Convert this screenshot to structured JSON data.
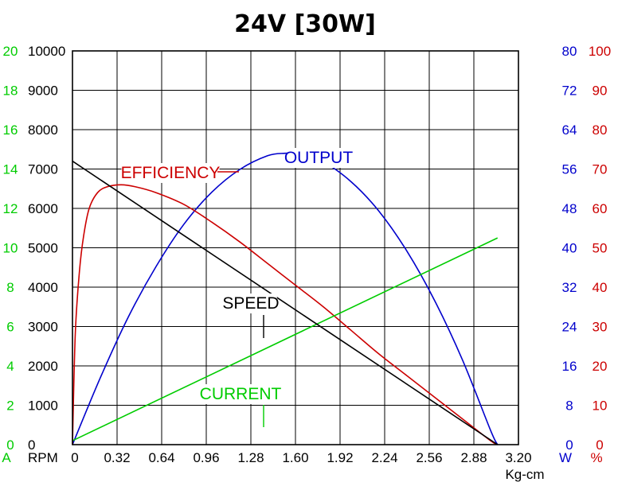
{
  "chart_data": {
    "type": "line",
    "title": "24V [30W]",
    "x": {
      "unit_label": "Kg-cm",
      "ticks": [
        0,
        0.32,
        0.64,
        0.96,
        1.28,
        1.6,
        1.92,
        2.24,
        2.56,
        2.88,
        3.2
      ],
      "tick_labels": [
        "0",
        "0.32",
        "0.64",
        "0.96",
        "1.28",
        "1.60",
        "1.92",
        "2.24",
        "2.56",
        "2.88",
        "3.20"
      ],
      "range": [
        0,
        3.2
      ]
    },
    "axes": {
      "current": {
        "unit_label": "A",
        "ticks": [
          0,
          2,
          4,
          6,
          8,
          10,
          12,
          14,
          16,
          18,
          20
        ],
        "tick_labels": [
          "0",
          "2",
          "4",
          "6",
          "8",
          "10",
          "12",
          "14",
          "16",
          "18",
          "20"
        ],
        "range": [
          0,
          20
        ],
        "color": "#00cc00"
      },
      "speed": {
        "unit_label": "RPM",
        "ticks": [
          0,
          1000,
          2000,
          3000,
          4000,
          5000,
          6000,
          7000,
          8000,
          9000,
          10000
        ],
        "tick_labels": [
          "0",
          "1000",
          "2000",
          "3000",
          "4000",
          "5000",
          "6000",
          "7000",
          "8000",
          "9000",
          "10000"
        ],
        "range": [
          0,
          10000
        ],
        "color": "#000000"
      },
      "output": {
        "unit_label": "W",
        "ticks": [
          0,
          8,
          16,
          24,
          32,
          40,
          48,
          56,
          64,
          72,
          80
        ],
        "tick_labels": [
          "0",
          "8",
          "16",
          "24",
          "32",
          "40",
          "48",
          "56",
          "64",
          "72",
          "80"
        ],
        "range": [
          0,
          80
        ],
        "color": "#0000cc"
      },
      "efficiency": {
        "unit_label": "%",
        "ticks": [
          0,
          10,
          20,
          30,
          40,
          50,
          60,
          70,
          80,
          90,
          100
        ],
        "tick_labels": [
          "0",
          "10",
          "20",
          "30",
          "40",
          "50",
          "60",
          "70",
          "80",
          "90",
          "100"
        ],
        "range": [
          0,
          100
        ],
        "color": "#cc0000"
      }
    },
    "grid": true,
    "series": {
      "speed": {
        "name": "SPEED",
        "axis": "speed",
        "color": "#000000",
        "x": [
          0,
          3.05
        ],
        "y": [
          7200,
          0
        ]
      },
      "current": {
        "name": "CURRENT",
        "axis": "current",
        "color": "#00cc00",
        "x": [
          0,
          3.05
        ],
        "y": [
          0.2,
          10.5
        ]
      },
      "output": {
        "name": "OUTPUT",
        "axis": "output",
        "color": "#0000cc",
        "x": [
          0,
          0.2,
          0.4,
          0.6,
          0.8,
          1.0,
          1.2,
          1.4,
          1.525,
          1.6,
          1.8,
          2.0,
          2.2,
          2.4,
          2.6,
          2.8,
          3.0,
          3.05
        ],
        "y": [
          0,
          13.6,
          25.9,
          36.2,
          44.8,
          51.3,
          55.9,
          58.7,
          59.2,
          59.1,
          57.4,
          53.4,
          47.4,
          39.3,
          29.2,
          17.1,
          2.9,
          0
        ]
      },
      "efficiency": {
        "name": "EFFICIENCY",
        "axis": "efficiency",
        "color": "#cc0000",
        "x": [
          0,
          0.02,
          0.05,
          0.08,
          0.12,
          0.18,
          0.25,
          0.35,
          0.45,
          0.6,
          0.8,
          1.0,
          1.2,
          1.4,
          1.6,
          1.8,
          2.0,
          2.2,
          2.4,
          2.6,
          2.8,
          3.0,
          3.05
        ],
        "y": [
          0,
          28,
          44,
          53,
          60,
          64,
          65.5,
          66,
          65.5,
          64,
          61,
          56.5,
          51.5,
          46,
          40.5,
          35,
          29,
          23,
          17.5,
          12,
          6.5,
          1,
          0
        ]
      }
    },
    "labels": {
      "speed": "SPEED",
      "current": "CURRENT",
      "output": "OUTPUT",
      "efficiency": "EFFICIENCY"
    }
  }
}
